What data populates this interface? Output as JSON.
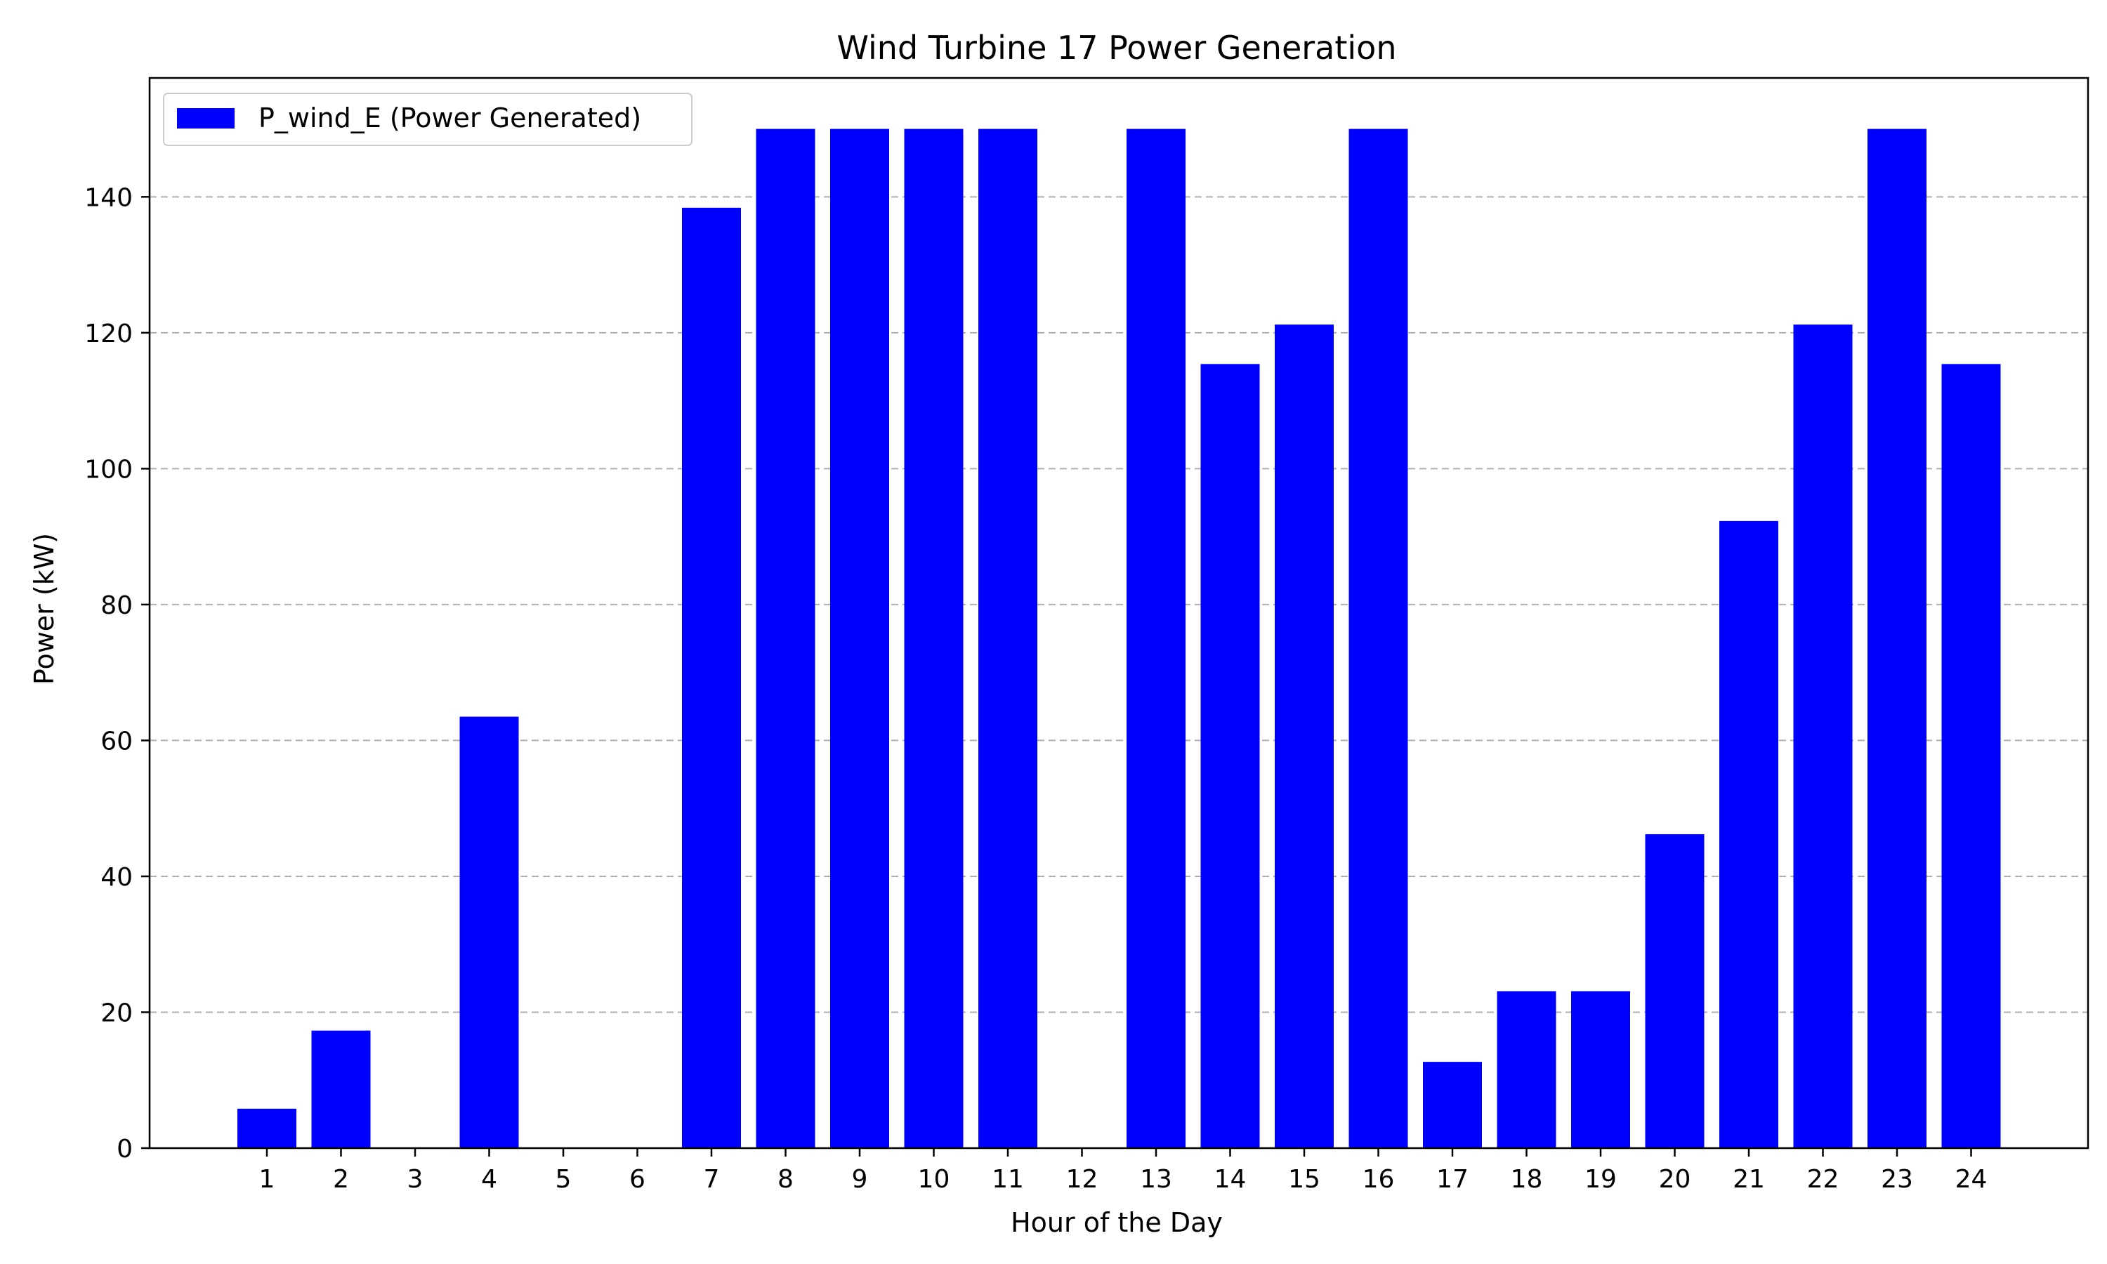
{
  "chart_data": {
    "type": "bar",
    "title": "Wind Turbine 17 Power Generation",
    "xlabel": "Hour of the Day",
    "ylabel": "Power (kW)",
    "categories": [
      "1",
      "2",
      "3",
      "4",
      "5",
      "6",
      "7",
      "8",
      "9",
      "10",
      "11",
      "12",
      "13",
      "14",
      "15",
      "16",
      "17",
      "18",
      "19",
      "20",
      "21",
      "22",
      "23",
      "24"
    ],
    "series": [
      {
        "name": "P_wind_E (Power Generated)",
        "color": "#0000ff",
        "values": [
          5.8,
          17.3,
          0,
          63.5,
          0,
          0,
          138.4,
          150,
          150,
          150,
          150,
          0,
          150,
          115.4,
          121.2,
          150,
          12.7,
          23.1,
          23.1,
          46.2,
          92.3,
          121.2,
          150,
          115.4
        ]
      }
    ],
    "ylim": [
      0,
      157.5
    ],
    "yticks": [
      0,
      20,
      40,
      60,
      80,
      100,
      120,
      140
    ],
    "grid": "y-dashed",
    "legend_position": "top-left"
  }
}
